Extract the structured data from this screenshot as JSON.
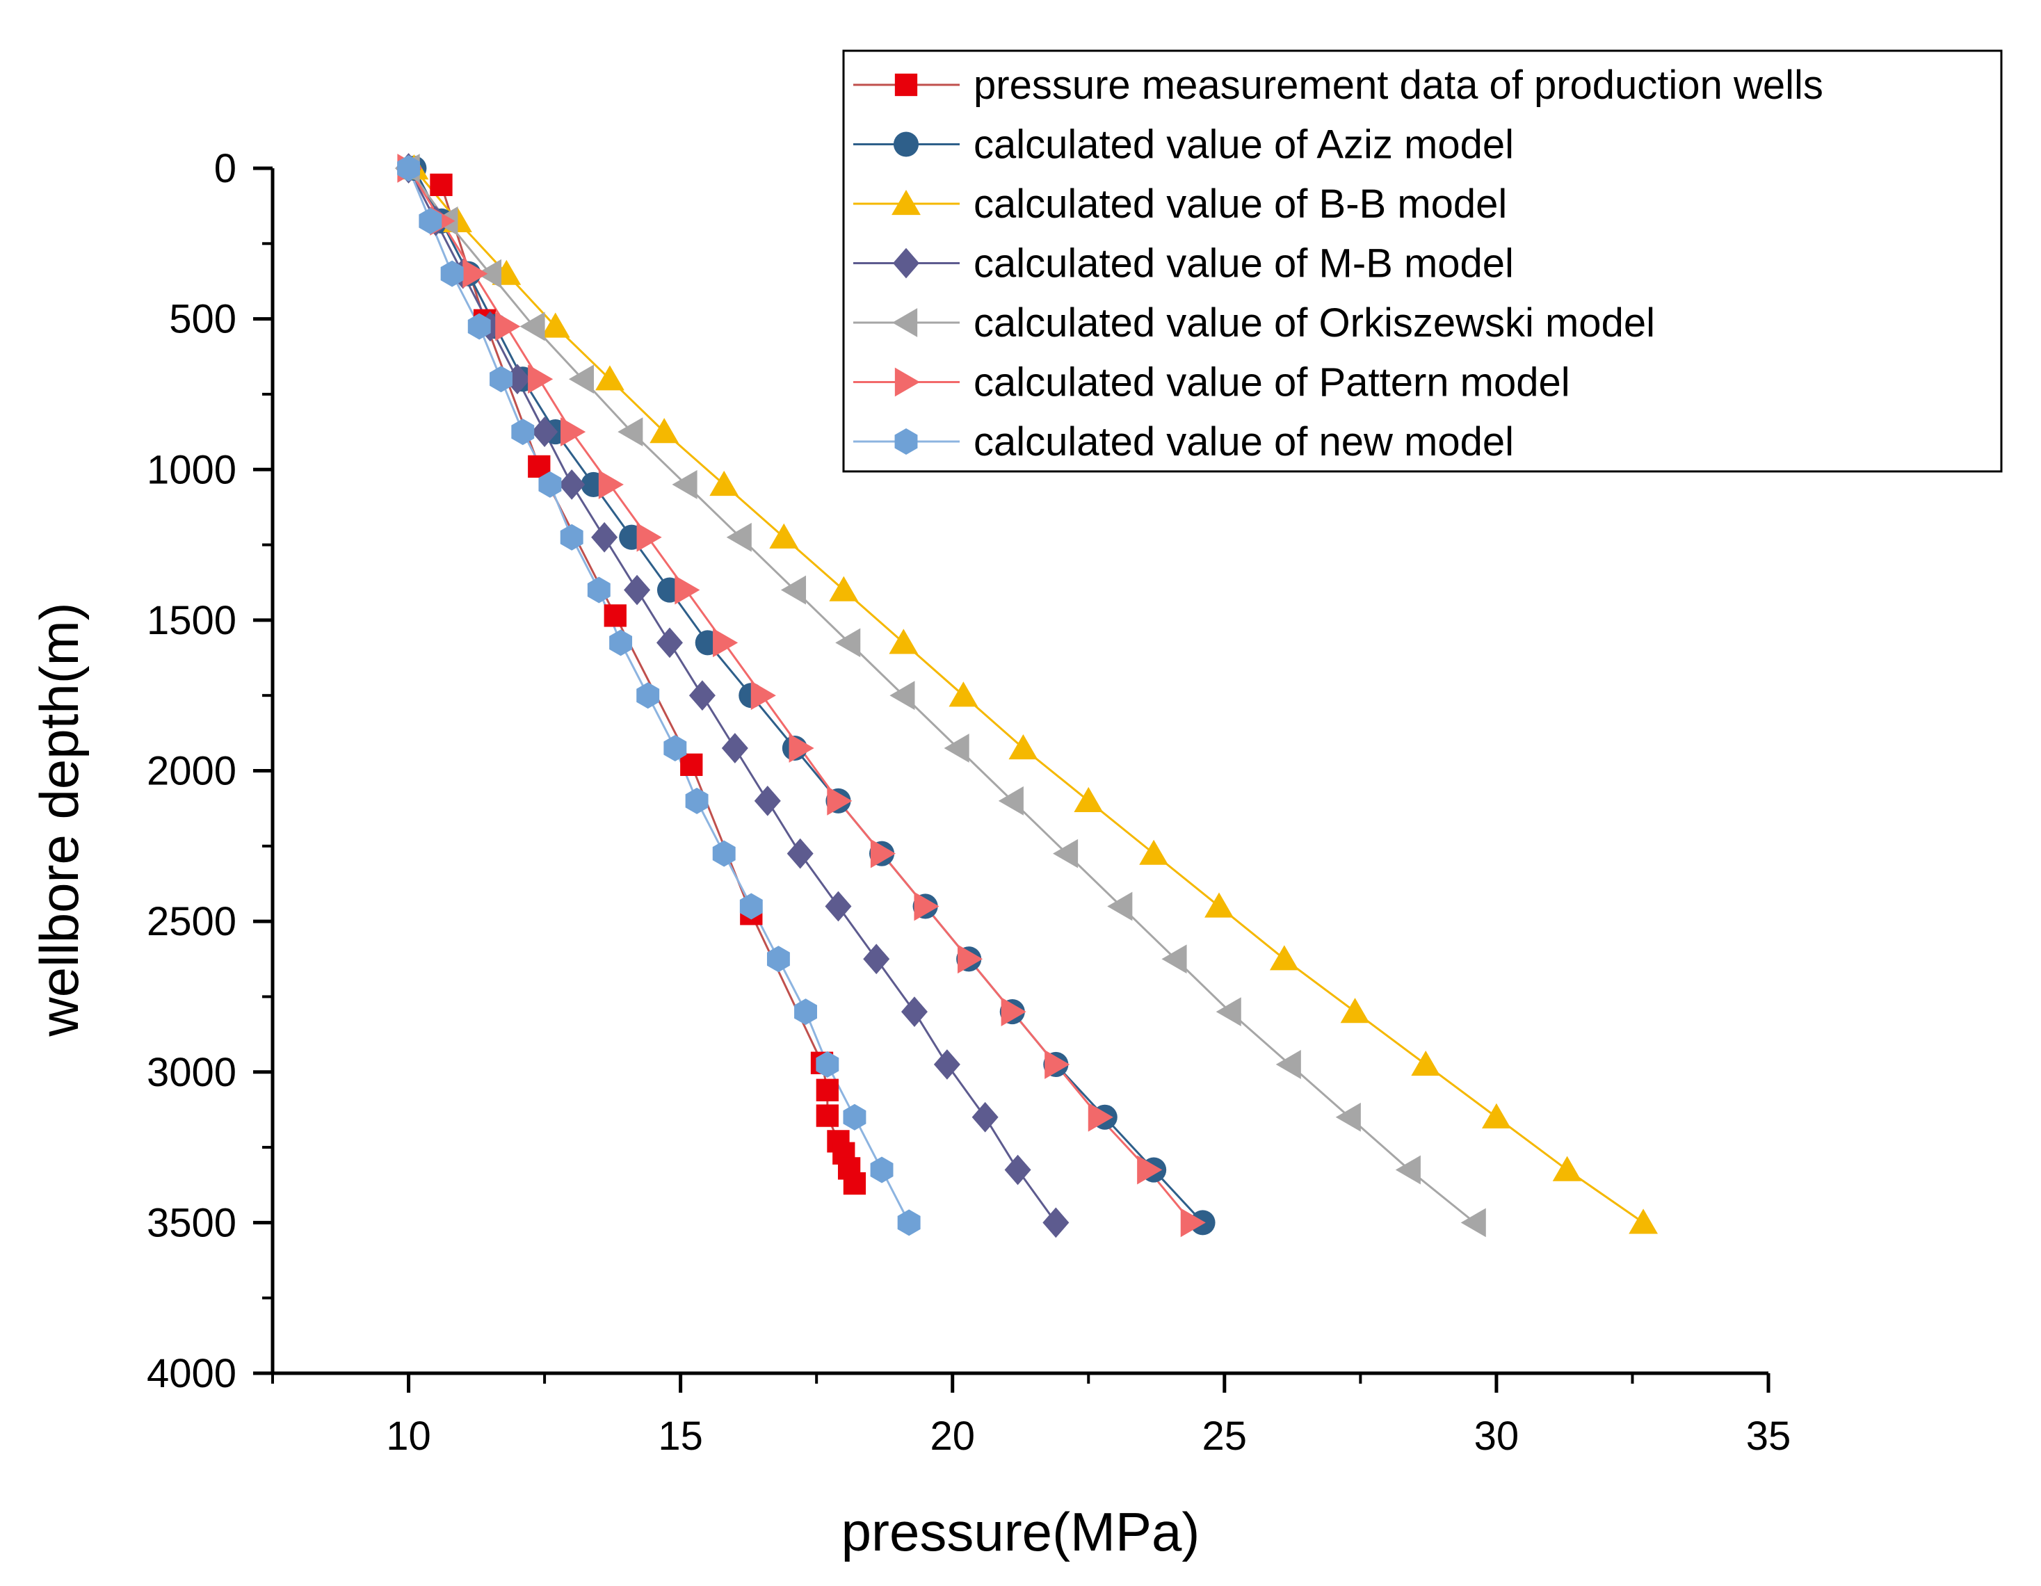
{
  "chart_data": {
    "type": "scatter",
    "title": "",
    "xlabel": "pressure(MPa)",
    "ylabel": "wellbore depth(m)",
    "xlim": [
      7.5,
      35
    ],
    "ylim": [
      0,
      4000
    ],
    "y_inverted": true,
    "xticks": [
      10,
      15,
      20,
      25,
      30,
      35
    ],
    "yticks": [
      0,
      500,
      1000,
      1500,
      2000,
      2500,
      3000,
      3500,
      4000
    ],
    "grid": false,
    "legend_position": "top-right",
    "series": [
      {
        "name": "pressure measurement data of production wells",
        "marker": "square",
        "color": "#e8000b",
        "line_color": "#c0504d",
        "x": [
          10.6,
          11.4,
          12.4,
          13.8,
          15.2,
          16.3,
          17.6,
          17.7,
          17.7,
          17.9,
          18.0,
          18.1,
          18.2
        ],
        "y": [
          55,
          505,
          990,
          1485,
          1980,
          2475,
          2970,
          3060,
          3145,
          3230,
          3270,
          3320,
          3370
        ]
      },
      {
        "name": "calculated value of Aziz model",
        "marker": "circle",
        "color": "#2e5f8a",
        "line_color": "#2e5f8a",
        "x": [
          10.1,
          10.6,
          11.1,
          11.6,
          12.1,
          12.7,
          13.4,
          14.1,
          14.8,
          15.5,
          16.3,
          17.1,
          17.9,
          18.7,
          19.5,
          20.3,
          21.1,
          21.9,
          22.8,
          23.7,
          24.6
        ],
        "y": [
          0,
          175,
          350,
          525,
          700,
          875,
          1050,
          1225,
          1400,
          1575,
          1750,
          1925,
          2100,
          2275,
          2450,
          2625,
          2800,
          2975,
          3150,
          3325,
          3500
        ]
      },
      {
        "name": "calculated value of B-B model",
        "marker": "triangle-up",
        "color": "#f5b800",
        "line_color": "#f5b800",
        "x": [
          10.1,
          10.9,
          11.8,
          12.7,
          13.7,
          14.7,
          15.8,
          16.9,
          18.0,
          19.1,
          20.2,
          21.3,
          22.5,
          23.7,
          24.9,
          26.1,
          27.4,
          28.7,
          30.0,
          31.3,
          32.7
        ],
        "y": [
          0,
          175,
          350,
          525,
          700,
          875,
          1050,
          1225,
          1400,
          1575,
          1750,
          1925,
          2100,
          2275,
          2450,
          2625,
          2800,
          2975,
          3150,
          3325,
          3500
        ]
      },
      {
        "name": "calculated value of M-B model",
        "marker": "diamond",
        "color": "#5d5b8f",
        "line_color": "#5d5b8f",
        "x": [
          10.0,
          10.5,
          11.0,
          11.5,
          12.0,
          12.5,
          13.0,
          13.6,
          14.2,
          14.8,
          15.4,
          16.0,
          16.6,
          17.2,
          17.9,
          18.6,
          19.3,
          19.9,
          20.6,
          21.2,
          21.9
        ],
        "y": [
          0,
          175,
          350,
          525,
          700,
          875,
          1050,
          1225,
          1400,
          1575,
          1750,
          1925,
          2100,
          2275,
          2450,
          2625,
          2800,
          2975,
          3150,
          3325,
          3500
        ]
      },
      {
        "name": "calculated value of Orkiszewski model",
        "marker": "triangle-left",
        "color": "#a6a6a6",
        "line_color": "#a6a6a6",
        "x": [
          10.0,
          10.7,
          11.5,
          12.3,
          13.2,
          14.1,
          15.1,
          16.1,
          17.1,
          18.1,
          19.1,
          20.1,
          21.1,
          22.1,
          23.1,
          24.1,
          25.1,
          26.2,
          27.3,
          28.4,
          29.6
        ],
        "y": [
          0,
          175,
          350,
          525,
          700,
          875,
          1050,
          1225,
          1400,
          1575,
          1750,
          1925,
          2100,
          2275,
          2450,
          2625,
          2800,
          2975,
          3150,
          3325,
          3500
        ]
      },
      {
        "name": "calculated value of Pattern model",
        "marker": "triangle-right",
        "color": "#f2696a",
        "line_color": "#f2696a",
        "x": [
          10.0,
          10.6,
          11.2,
          11.8,
          12.4,
          13.0,
          13.7,
          14.4,
          15.1,
          15.8,
          16.5,
          17.2,
          17.9,
          18.7,
          19.5,
          20.3,
          21.1,
          21.9,
          22.7,
          23.6,
          24.4
        ],
        "y": [
          0,
          175,
          350,
          525,
          700,
          875,
          1050,
          1225,
          1400,
          1575,
          1750,
          1925,
          2100,
          2275,
          2450,
          2625,
          2800,
          2975,
          3150,
          3325,
          3500
        ]
      },
      {
        "name": "calculated value of new model",
        "marker": "hexagon",
        "color": "#6fa1d6",
        "line_color": "#8db4e0",
        "x": [
          10.0,
          10.4,
          10.8,
          11.3,
          11.7,
          12.1,
          12.6,
          13.0,
          13.5,
          13.9,
          14.4,
          14.9,
          15.3,
          15.8,
          16.3,
          16.8,
          17.3,
          17.7,
          18.2,
          18.7,
          19.2
        ],
        "y": [
          0,
          175,
          350,
          525,
          700,
          875,
          1050,
          1225,
          1400,
          1575,
          1750,
          1925,
          2100,
          2275,
          2450,
          2625,
          2800,
          2975,
          3150,
          3325,
          3500
        ]
      }
    ]
  }
}
